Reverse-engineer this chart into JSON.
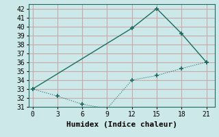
{
  "xlabel": "Humidex (Indice chaleur)",
  "background_color": "#cde8e8",
  "grid_color": "#c8a8a8",
  "line_color": "#1a6b60",
  "line1_x": [
    0,
    12,
    15,
    18,
    21
  ],
  "line1_y": [
    33,
    39.8,
    42,
    39.2,
    36
  ],
  "line2_x": [
    0,
    3,
    6,
    9,
    12,
    15,
    18,
    21
  ],
  "line2_y": [
    33,
    32.2,
    31.3,
    30.8,
    34.0,
    34.5,
    35.3,
    36
  ],
  "xlim": [
    -0.5,
    22
  ],
  "ylim": [
    31,
    42.5
  ],
  "xticks": [
    0,
    3,
    6,
    9,
    12,
    15,
    18,
    21
  ],
  "yticks": [
    31,
    32,
    33,
    34,
    35,
    36,
    37,
    38,
    39,
    40,
    41,
    42
  ],
  "font_family": "monospace",
  "xlabel_fontsize": 8,
  "tick_fontsize": 7
}
